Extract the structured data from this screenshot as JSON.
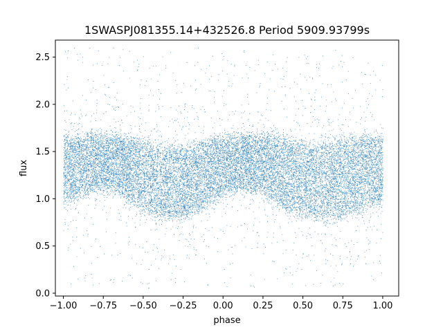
{
  "chart_data": {
    "type": "scatter",
    "title": "1SWASPJ081355.14+432526.8 Period 5909.93799s",
    "xlabel": "phase",
    "ylabel": "flux",
    "xlim": [
      -1.05,
      1.1
    ],
    "ylim": [
      -0.03,
      2.68
    ],
    "x_ticks": [
      -1.0,
      -0.75,
      -0.5,
      -0.25,
      0.0,
      0.25,
      0.5,
      0.75,
      1.0
    ],
    "x_tick_labels": [
      "−1.00",
      "−0.75",
      "−0.50",
      "−0.25",
      "0.00",
      "0.25",
      "0.50",
      "0.75",
      "1.00"
    ],
    "y_ticks": [
      0.0,
      0.5,
      1.0,
      1.5,
      2.0,
      2.5
    ],
    "y_tick_labels": [
      "0.0",
      "0.5",
      "1.0",
      "1.5",
      "2.0",
      "2.5"
    ],
    "grid": false,
    "legend": "none",
    "series": [
      {
        "color": "#1f77b4",
        "marker": "point",
        "x_range": [
          -1.0,
          1.0
        ],
        "y_range": [
          0.05,
          2.6
        ],
        "folded_phase": true,
        "approx_point_count": 120000,
        "trend": {
          "phase": [
            -1.0,
            -0.9,
            -0.8,
            -0.7,
            -0.6,
            -0.5,
            -0.4,
            -0.3,
            -0.25,
            -0.2,
            -0.1,
            0.0,
            0.1,
            0.2,
            0.25,
            0.3,
            0.4,
            0.5,
            0.6,
            0.7,
            0.75,
            0.8,
            0.9,
            1.0
          ],
          "flux_median": [
            1.3,
            1.35,
            1.38,
            1.38,
            1.35,
            1.28,
            1.22,
            1.2,
            1.2,
            1.22,
            1.3,
            1.35,
            1.38,
            1.38,
            1.37,
            1.35,
            1.28,
            1.22,
            1.2,
            1.2,
            1.22,
            1.25,
            1.3,
            1.3
          ],
          "flux_upper_band": [
            1.65,
            1.67,
            1.68,
            1.67,
            1.65,
            1.6,
            1.57,
            1.55,
            1.55,
            1.55,
            1.62,
            1.65,
            1.67,
            1.68,
            1.67,
            1.66,
            1.62,
            1.58,
            1.57,
            1.6,
            1.62,
            1.64,
            1.65,
            1.65
          ],
          "flux_lower_band": [
            0.95,
            1.05,
            1.1,
            1.1,
            1.0,
            0.88,
            0.82,
            0.8,
            0.8,
            0.85,
            0.95,
            1.05,
            1.1,
            1.1,
            1.05,
            1.0,
            0.9,
            0.82,
            0.8,
            0.8,
            0.82,
            0.85,
            0.92,
            0.95
          ]
        }
      }
    ]
  }
}
